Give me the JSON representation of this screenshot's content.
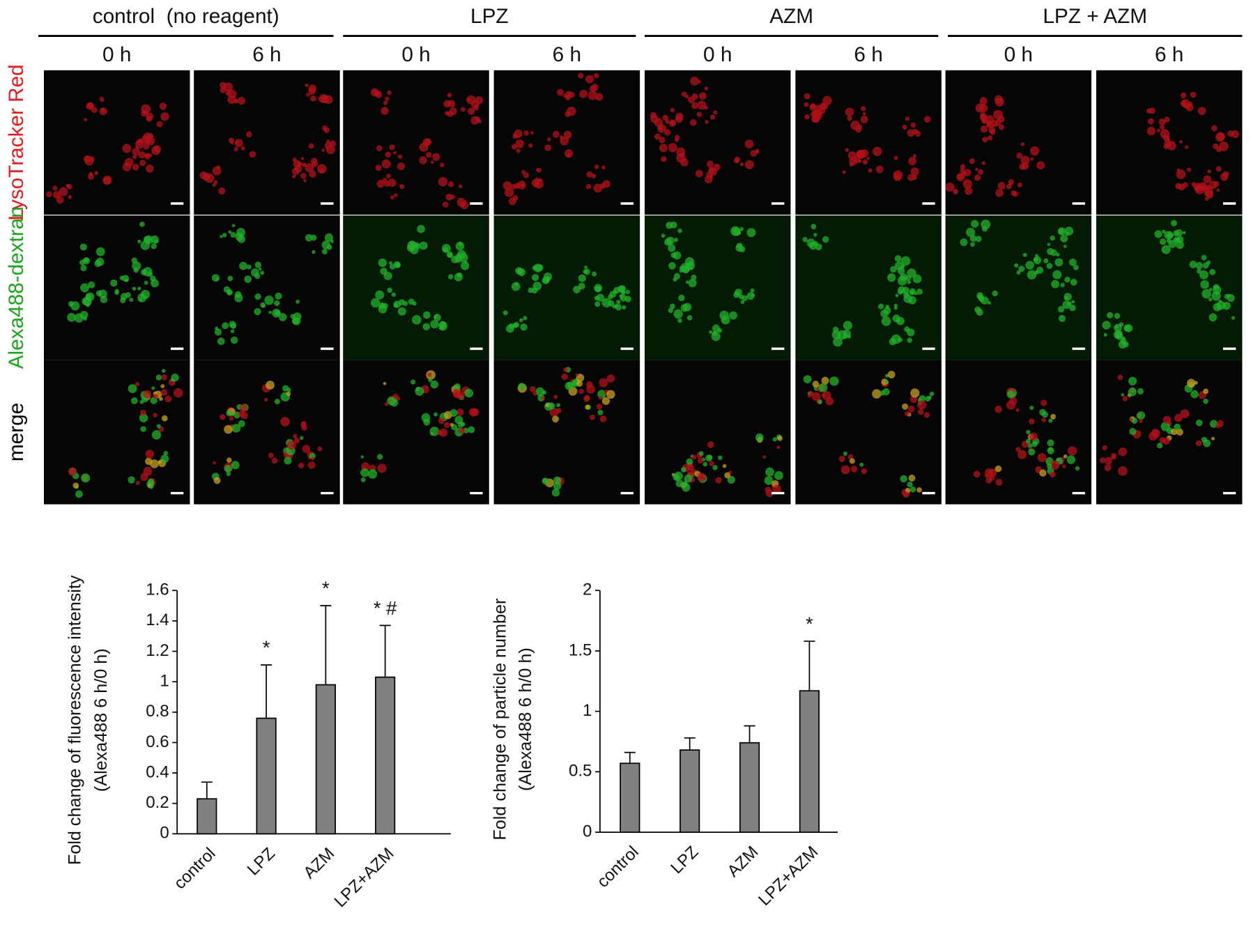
{
  "figure": {
    "groups": [
      "control  (no reagent)",
      "LPZ",
      "AZM",
      "LPZ + AZM"
    ],
    "times": [
      "0 h",
      "6 h"
    ],
    "rows": [
      "LysoTracker Red",
      "Alexa488-dextran",
      "merge"
    ],
    "row_colors": [
      "#e8191c",
      "#1aa51a",
      "#000000"
    ]
  },
  "chart_data": [
    {
      "type": "bar",
      "y_label": [
        "Fold change of fluorescence intensity",
        "(Alexa488 6 h/0 h)"
      ],
      "categories": [
        "control",
        "LPZ",
        "AZM",
        "LPZ+AZM"
      ],
      "values": [
        0.23,
        0.76,
        0.98,
        1.03
      ],
      "errors": [
        0.11,
        0.35,
        0.52,
        0.34
      ],
      "significance": [
        null,
        "*",
        "*",
        "* #"
      ],
      "color": "#808080",
      "ylim": [
        0,
        1.6
      ],
      "yticks": [
        0,
        0.2,
        0.4,
        0.6,
        0.8,
        1,
        1.2,
        1.4,
        1.6
      ]
    },
    {
      "type": "bar",
      "y_label": [
        "Fold change of particle number",
        "(Alexa488 6 h/0 h)"
      ],
      "categories": [
        "control",
        "LPZ",
        "AZM",
        "LPZ+AZM"
      ],
      "values": [
        0.57,
        0.68,
        0.74,
        1.17
      ],
      "errors": [
        0.09,
        0.1,
        0.14,
        0.41
      ],
      "significance": [
        null,
        null,
        null,
        "*"
      ],
      "color": "#808080",
      "ylim": [
        0,
        2
      ],
      "yticks": [
        0,
        0.5,
        1,
        1.5,
        2
      ]
    }
  ]
}
